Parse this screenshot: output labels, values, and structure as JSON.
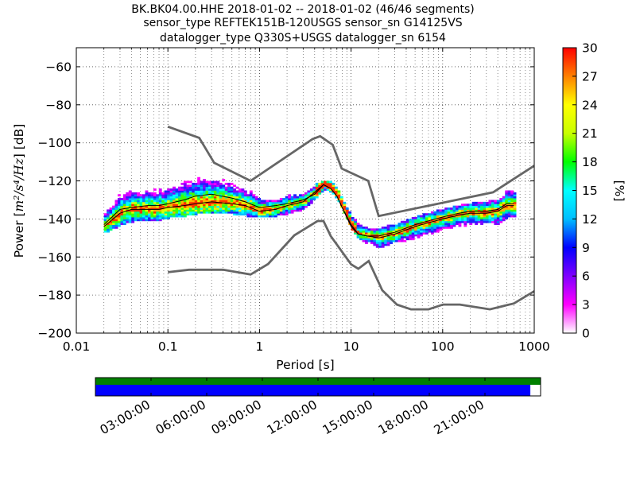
{
  "chart_data": {
    "type": "heatmap",
    "title_lines": [
      "BK.BK04.00.HHE   2018-01-02 -- 2018-01-02  (46/46 segments)",
      "sensor_type REFTEK151B-120USGS sensor_sn G14125VS",
      "datalogger_type Q330S+USGS datalogger_sn 6154"
    ],
    "xlabel": "Period [s]",
    "ylabel_prefix": "Power [",
    "ylabel_math": "m²/s⁴/Hz",
    "ylabel_suffix": "] [dB]",
    "x_scale": "log",
    "xlim": [
      0.01,
      1000
    ],
    "ylim": [
      -200,
      -50
    ],
    "x_ticks": [
      0.01,
      0.1,
      1,
      10,
      100,
      1000
    ],
    "x_tick_labels": [
      "0.01",
      "0.1",
      "1",
      "10",
      "100",
      "1000"
    ],
    "y_ticks": [
      -200,
      -180,
      -160,
      -140,
      -120,
      -100,
      -80,
      -60
    ],
    "y_tick_labels": [
      "−200",
      "−180",
      "−160",
      "−140",
      "−120",
      "−100",
      "−80",
      "−60"
    ],
    "grid": true,
    "colorbar": {
      "label": "[%]",
      "range": [
        0,
        30
      ],
      "ticks": [
        0,
        3,
        6,
        9,
        12,
        15,
        18,
        21,
        24,
        27,
        30
      ],
      "tick_labels": [
        "0",
        "3",
        "6",
        "9",
        "12",
        "15",
        "18",
        "21",
        "24",
        "27",
        "30"
      ],
      "colormap": "pqlx"
    },
    "band": {
      "periods": [
        0.02,
        0.03,
        0.04,
        0.06,
        0.08,
        0.1,
        0.15,
        0.2,
        0.3,
        0.5,
        0.7,
        1,
        1.5,
        2,
        3,
        4,
        5,
        6,
        7,
        8,
        10,
        12,
        15,
        20,
        30,
        50,
        70,
        100,
        150,
        200,
        300,
        400,
        500,
        600
      ],
      "low": [
        -147,
        -143,
        -141,
        -141,
        -140,
        -139,
        -138,
        -137,
        -137,
        -137,
        -138,
        -139,
        -138,
        -137,
        -135,
        -129,
        -124,
        -126,
        -130,
        -136,
        -145,
        -151,
        -153,
        -155,
        -153,
        -150,
        -148,
        -146,
        -144,
        -143,
        -143,
        -143,
        -139,
        -138
      ],
      "high": [
        -136,
        -127,
        -126,
        -126,
        -124,
        -122,
        -118,
        -116,
        -117,
        -121,
        -125,
        -129,
        -130,
        -129,
        -128,
        -123,
        -121,
        -122,
        -126,
        -132,
        -140,
        -144,
        -146,
        -146,
        -144,
        -140,
        -138,
        -136,
        -134,
        -133,
        -132,
        -131,
        -126,
        -126
      ],
      "mean": [
        -143,
        -135,
        -134,
        -133,
        -133,
        -132,
        -130,
        -128,
        -127,
        -129,
        -131,
        -134,
        -133,
        -132,
        -130,
        -127,
        -122,
        -124,
        -128,
        -134,
        -143,
        -148,
        -149,
        -149,
        -147,
        -143,
        -141,
        -139,
        -137,
        -136,
        -136,
        -135,
        -132,
        -132
      ],
      "mode": [
        -144,
        -137,
        -135,
        -135,
        -135,
        -134,
        -133,
        -132,
        -131,
        -132,
        -133,
        -136,
        -135,
        -133,
        -131,
        -126,
        -122,
        -124,
        -128,
        -134,
        -144,
        -148,
        -149,
        -150,
        -148,
        -144,
        -142,
        -140,
        -138,
        -137,
        -137,
        -136,
        -133,
        -133
      ]
    },
    "nhnm": {
      "periods": [
        0.1,
        0.22,
        0.32,
        0.8,
        3.8,
        4.6,
        6.3,
        7.9,
        15.4,
        20,
        354.8,
        1000
      ],
      "values": [
        -91.5,
        -97.4,
        -110.5,
        -120,
        -98,
        -96.5,
        -101,
        -113.5,
        -120,
        -138.5,
        -126,
        -112
      ]
    },
    "nlnm": {
      "periods": [
        0.1,
        0.17,
        0.4,
        0.8,
        1.24,
        2.4,
        4.3,
        5,
        6,
        10,
        12,
        15.6,
        21.9,
        31.6,
        45,
        70,
        101,
        154,
        328,
        600,
        1000
      ],
      "values": [
        -168,
        -166.7,
        -166.7,
        -169.2,
        -163.7,
        -148.6,
        -141.1,
        -141.1,
        -149,
        -163.8,
        -166.2,
        -162.1,
        -177.5,
        -185,
        -187.5,
        -187.5,
        -185,
        -185,
        -187.5,
        -184.4,
        -178
      ]
    },
    "coverage": {
      "time_tick_labels": [
        "03:00:00",
        "06:00:00",
        "09:00:00",
        "12:00:00",
        "15:00:00",
        "18:00:00",
        "21:00:00"
      ],
      "data_fraction": 0.977,
      "colors": {
        "gaps": "#008000",
        "data": "#0000ff"
      }
    }
  }
}
